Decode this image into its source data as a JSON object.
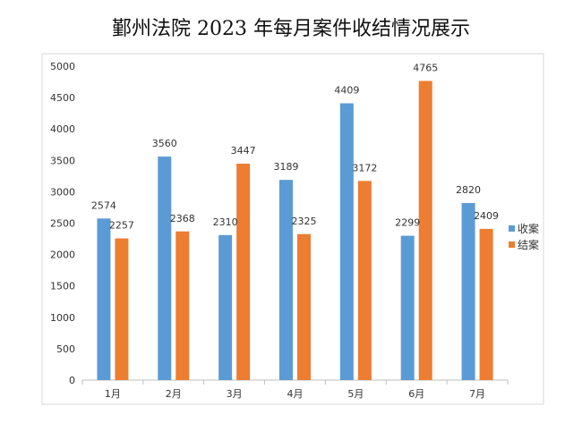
{
  "chart_data": {
    "type": "bar",
    "title": "鄞州法院 2023 年每月案件收结情况展示",
    "categories": [
      "1月",
      "2月",
      "3月",
      "4月",
      "5月",
      "6月",
      "7月"
    ],
    "series": [
      {
        "name": "收案",
        "color": "#5B9BD5",
        "values": [
          2574,
          3560,
          2310,
          3189,
          4409,
          2299,
          2820
        ]
      },
      {
        "name": "结案",
        "color": "#ED7D31",
        "values": [
          2257,
          2368,
          3447,
          2325,
          3172,
          4765,
          2409
        ]
      }
    ],
    "ylim": [
      0,
      5000
    ],
    "yticks": [
      0,
      500,
      1000,
      1500,
      2000,
      2500,
      3000,
      3500,
      4000,
      4500,
      5000
    ],
    "grid": false,
    "legend": "right",
    "data_labels": true
  }
}
